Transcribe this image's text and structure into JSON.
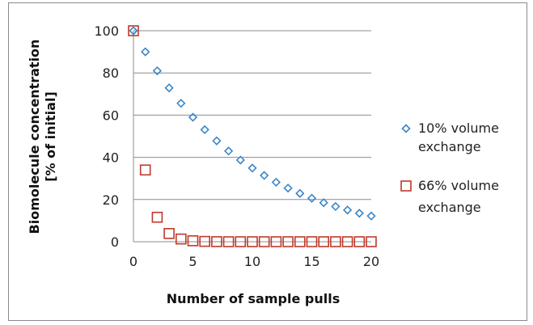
{
  "chart_data": {
    "type": "scatter",
    "title": "",
    "xlabel": "Number of sample pulls",
    "ylabel_lines": [
      "Biomolecule concentration",
      "[% of initial]"
    ],
    "xlim": [
      0,
      20
    ],
    "ylim": [
      0,
      100
    ],
    "xticks": [
      0,
      5,
      10,
      15,
      20
    ],
    "yticks": [
      0,
      20,
      40,
      60,
      80,
      100
    ],
    "grid": "horizontal",
    "legend_position": "right",
    "series": [
      {
        "name_lines": [
          "10% volume",
          "exchange"
        ],
        "marker": "diamond",
        "color": "#3a86c8",
        "x": [
          0,
          1,
          2,
          3,
          4,
          5,
          6,
          7,
          8,
          9,
          10,
          11,
          12,
          13,
          14,
          15,
          16,
          17,
          18,
          19,
          20
        ],
        "y": [
          100,
          90,
          81,
          72.9,
          65.6,
          59,
          53.1,
          47.8,
          43,
          38.7,
          34.9,
          31.4,
          28.2,
          25.4,
          22.9,
          20.6,
          18.5,
          16.7,
          15,
          13.5,
          12.2
        ]
      },
      {
        "name_lines": [
          "66% volume",
          "exchange"
        ],
        "marker": "square",
        "color": "#c0392b",
        "x": [
          0,
          1,
          2,
          3,
          4,
          5,
          6,
          7,
          8,
          9,
          10,
          11,
          12,
          13,
          14,
          15,
          16,
          17,
          18,
          19,
          20
        ],
        "y": [
          100,
          34,
          11.6,
          3.9,
          1.3,
          0.45,
          0.15,
          0.05,
          0,
          0,
          0,
          0,
          0,
          0,
          0,
          0,
          0,
          0,
          0,
          0,
          0
        ]
      }
    ]
  }
}
